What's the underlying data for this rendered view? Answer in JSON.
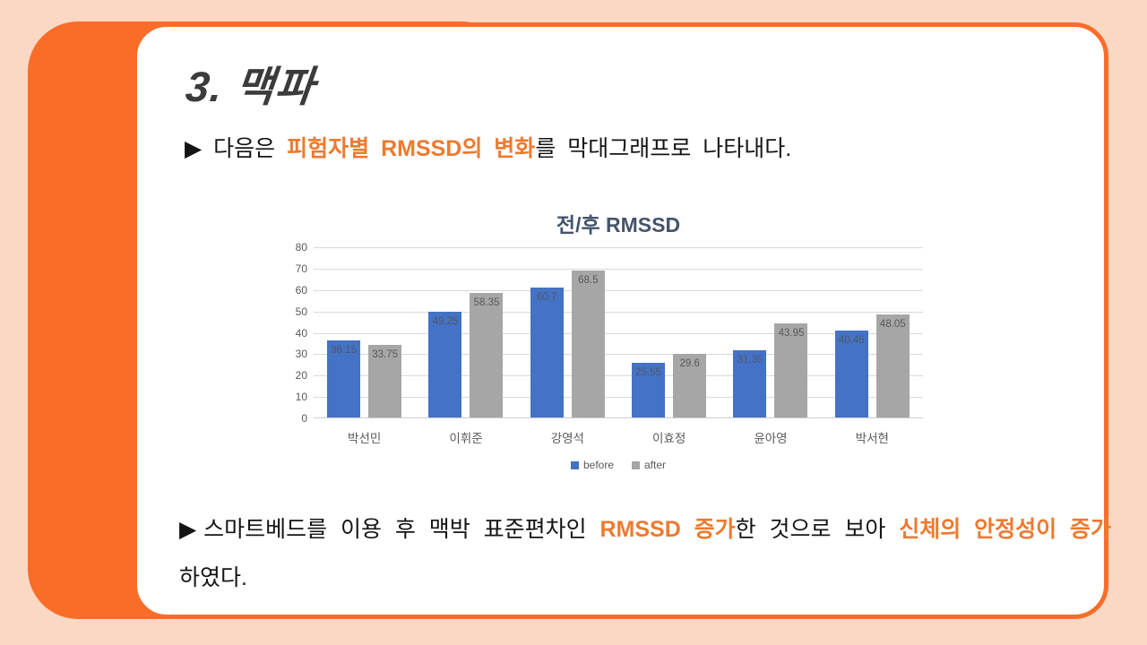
{
  "slide": {
    "title": "3. 맥파",
    "bullet1": {
      "prefix": "▶ 다음은 ",
      "highlight": "피험자별 RMSSD의 변화",
      "suffix": "를 막대그래프로 나타내다."
    },
    "bullet2": {
      "prefix": "▶스마트베드를 이용 후 맥박 표준편차인 ",
      "highlight1": "RMSSD 증가",
      "middle": "한 것으로 보아 ",
      "highlight2": "신체의 안정성이 증가",
      "tail": "하였다."
    }
  },
  "colors": {
    "page_background": "#FBD8C4",
    "frame_orange": "#F96D28",
    "text_highlight_orange": "#ED7A2F",
    "title_gray": "#3B3B3B",
    "chart_title_color": "#44546A",
    "axis_text": "#595959",
    "gridline": "#D9D9D9",
    "series_before": "#4472C4",
    "series_after": "#A6A6A6"
  },
  "chart_data": {
    "type": "bar",
    "title": "전/후 RMSSD",
    "categories": [
      "박선민",
      "이휘준",
      "강영석",
      "이효정",
      "윤아영",
      "박서현"
    ],
    "series": [
      {
        "name": "before",
        "color": "#4472C4",
        "values": [
          36.15,
          49.25,
          60.7,
          25.55,
          31.35,
          40.45
        ]
      },
      {
        "name": "after",
        "color": "#A6A6A6",
        "values": [
          33.75,
          58.35,
          68.5,
          29.6,
          43.95,
          48.05
        ]
      }
    ],
    "ylim": [
      0,
      80
    ],
    "ytick_step": 10,
    "grid": true,
    "legend_position": "bottom",
    "data_labels": "inside-end"
  }
}
